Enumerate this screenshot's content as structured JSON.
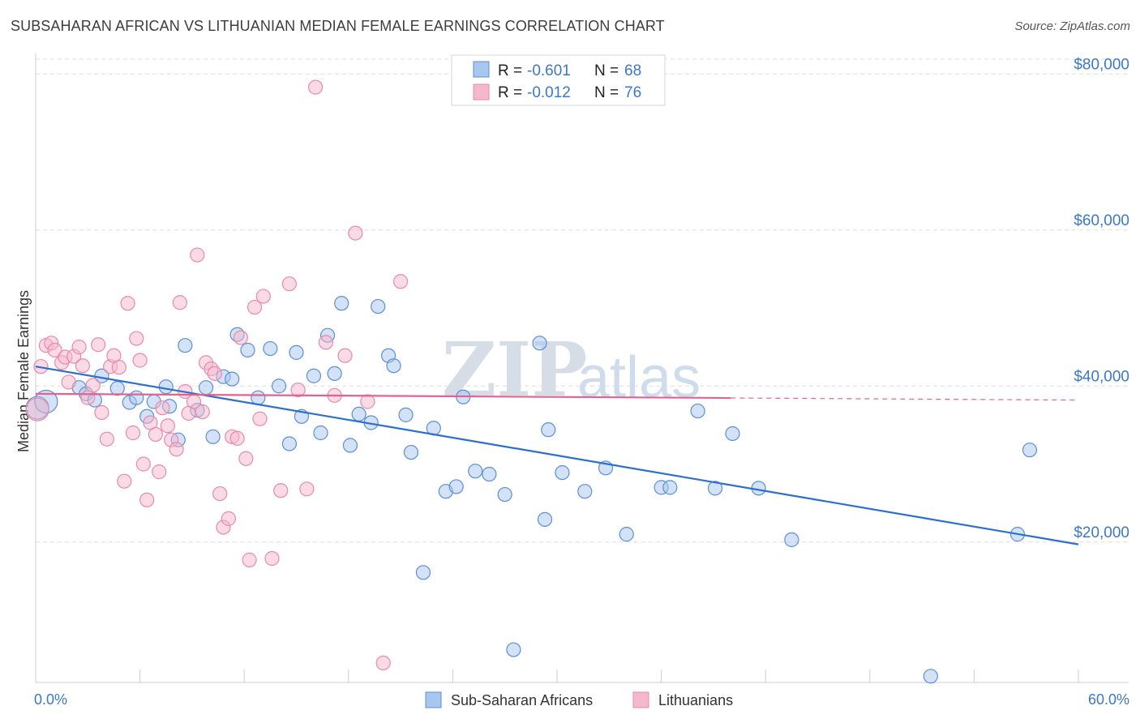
{
  "title": "SUBSAHARAN AFRICAN VS LITHUANIAN MEDIAN FEMALE EARNINGS CORRELATION CHART",
  "source": "Source: ZipAtlas.com",
  "watermark": {
    "zip": "ZIP",
    "atlas": "atlas"
  },
  "colors": {
    "blue_fill": "#a8c6ee",
    "blue_stroke": "#5b8fd6",
    "blue_line": "#2a6fd1",
    "pink_fill": "#f5b7cc",
    "pink_stroke": "#e78aab",
    "pink_line": "#e2638f",
    "grid": "#dddddd",
    "tick_text": "#3b78c9"
  },
  "chart_data": {
    "type": "scatter",
    "title": "SUBSAHARAN AFRICAN VS LITHUANIAN MEDIAN FEMALE EARNINGS CORRELATION CHART",
    "ylabel": "Median Female Earnings",
    "xlim": [
      0,
      60
    ],
    "ylim": [
      2000,
      82000
    ],
    "x_tick_labels": [
      "0.0%",
      "60.0%"
    ],
    "y_ticks": [
      20000,
      40000,
      60000,
      80000
    ],
    "y_tick_labels": [
      "$20,000",
      "$40,000",
      "$60,000",
      "$80,000"
    ],
    "legend_position": "top-center",
    "stats": [
      {
        "series": "Sub-Saharan Africans",
        "r_label": "R =",
        "r_value": "-0.601",
        "n_label": "N =",
        "n_value": "68"
      },
      {
        "series": "Lithuanians",
        "r_label": "R =",
        "r_value": "-0.012",
        "n_label": "N =",
        "n_value": "76"
      }
    ],
    "series": [
      {
        "name": "Sub-Saharan Africans",
        "color": "#5b8fd6",
        "trend": {
          "x0": 0,
          "y0": 42500,
          "x1": 60,
          "y1": 19700,
          "dashed_from": null
        },
        "points": [
          [
            0.1,
            37200,
            "large"
          ],
          [
            0.6,
            38000,
            "large"
          ],
          [
            2.5,
            39800
          ],
          [
            2.9,
            39000
          ],
          [
            3.4,
            38200
          ],
          [
            3.8,
            41300
          ],
          [
            4.7,
            39700
          ],
          [
            5.4,
            37900
          ],
          [
            5.8,
            38500
          ],
          [
            6.4,
            36100
          ],
          [
            6.8,
            38000
          ],
          [
            7.5,
            39900
          ],
          [
            7.7,
            37400
          ],
          [
            8.2,
            33100
          ],
          [
            8.6,
            45200
          ],
          [
            9.3,
            36900
          ],
          [
            9.8,
            39800
          ],
          [
            10.2,
            33500
          ],
          [
            10.8,
            41200
          ],
          [
            11.3,
            40900
          ],
          [
            11.6,
            46600
          ],
          [
            12.2,
            44600
          ],
          [
            12.8,
            38500
          ],
          [
            13.5,
            44800
          ],
          [
            14.0,
            40000
          ],
          [
            14.6,
            32600
          ],
          [
            15.0,
            44300
          ],
          [
            15.3,
            36100
          ],
          [
            16.0,
            41300
          ],
          [
            16.4,
            34000
          ],
          [
            16.8,
            46500
          ],
          [
            17.2,
            41600
          ],
          [
            17.6,
            50600
          ],
          [
            18.1,
            32400
          ],
          [
            18.6,
            36400
          ],
          [
            19.3,
            35300
          ],
          [
            19.7,
            50200
          ],
          [
            20.3,
            43900
          ],
          [
            20.6,
            42600
          ],
          [
            21.3,
            36300
          ],
          [
            21.6,
            31500
          ],
          [
            22.3,
            16100
          ],
          [
            22.9,
            34600
          ],
          [
            23.6,
            26500
          ],
          [
            24.2,
            27100
          ],
          [
            24.6,
            38600
          ],
          [
            25.3,
            29100
          ],
          [
            26.1,
            28700
          ],
          [
            27.0,
            26100
          ],
          [
            27.5,
            6200
          ],
          [
            29.0,
            45500
          ],
          [
            29.3,
            22900
          ],
          [
            29.5,
            34400
          ],
          [
            30.3,
            28900
          ],
          [
            31.6,
            26500
          ],
          [
            32.8,
            29500
          ],
          [
            34.0,
            21000
          ],
          [
            36.0,
            27000
          ],
          [
            36.5,
            27000
          ],
          [
            38.1,
            36800
          ],
          [
            39.1,
            26900
          ],
          [
            40.1,
            33900
          ],
          [
            41.6,
            26900
          ],
          [
            43.5,
            20300
          ],
          [
            51.5,
            2800
          ],
          [
            56.5,
            21000
          ],
          [
            57.2,
            31800
          ]
        ]
      },
      {
        "name": "Lithuanians",
        "color": "#e78aab",
        "trend": {
          "x0": 0,
          "y0": 39000,
          "x1": 60,
          "y1": 38200,
          "dashed_from": 40
        },
        "points": [
          [
            0.1,
            37000,
            "large"
          ],
          [
            0.3,
            42500
          ],
          [
            0.6,
            45200
          ],
          [
            0.9,
            45500
          ],
          [
            1.1,
            44600
          ],
          [
            1.5,
            43000
          ],
          [
            1.7,
            43700
          ],
          [
            1.9,
            40500
          ],
          [
            2.2,
            43800
          ],
          [
            2.5,
            45000
          ],
          [
            2.7,
            42600
          ],
          [
            3.0,
            38500
          ],
          [
            3.3,
            40100
          ],
          [
            3.6,
            45300
          ],
          [
            3.8,
            36600
          ],
          [
            4.1,
            33200
          ],
          [
            4.3,
            42500
          ],
          [
            4.5,
            43900
          ],
          [
            4.8,
            42400
          ],
          [
            5.1,
            27800
          ],
          [
            5.3,
            50600
          ],
          [
            5.6,
            34000
          ],
          [
            5.8,
            46100
          ],
          [
            6.0,
            43300
          ],
          [
            6.2,
            30000
          ],
          [
            6.4,
            25400
          ],
          [
            6.6,
            35300
          ],
          [
            6.9,
            33800
          ],
          [
            7.1,
            29000
          ],
          [
            7.3,
            37200
          ],
          [
            7.6,
            34900
          ],
          [
            7.8,
            33100
          ],
          [
            8.1,
            31900
          ],
          [
            8.3,
            50700
          ],
          [
            8.6,
            39300
          ],
          [
            8.8,
            36500
          ],
          [
            9.1,
            38000
          ],
          [
            9.3,
            56800
          ],
          [
            9.6,
            36700
          ],
          [
            9.8,
            43000
          ],
          [
            10.1,
            42200
          ],
          [
            10.3,
            41600
          ],
          [
            10.6,
            26200
          ],
          [
            10.8,
            21900
          ],
          [
            11.1,
            23000
          ],
          [
            11.3,
            33500
          ],
          [
            11.6,
            33300
          ],
          [
            11.8,
            46200
          ],
          [
            12.1,
            30700
          ],
          [
            12.3,
            17700
          ],
          [
            12.6,
            50100
          ],
          [
            12.9,
            35800
          ],
          [
            13.1,
            51500
          ],
          [
            13.6,
            17900
          ],
          [
            14.1,
            26600
          ],
          [
            14.6,
            53100
          ],
          [
            15.1,
            39500
          ],
          [
            15.6,
            26800
          ],
          [
            16.1,
            78300
          ],
          [
            16.7,
            45600
          ],
          [
            17.2,
            38800
          ],
          [
            17.8,
            43900
          ],
          [
            18.4,
            59600
          ],
          [
            19.1,
            38000
          ],
          [
            20.0,
            4500
          ],
          [
            21.0,
            53400
          ]
        ]
      }
    ]
  },
  "legend": {
    "items": [
      {
        "label": "Sub-Saharan Africans",
        "color": "#a8c6ee"
      },
      {
        "label": "Lithuanians",
        "color": "#f5b7cc"
      }
    ]
  }
}
